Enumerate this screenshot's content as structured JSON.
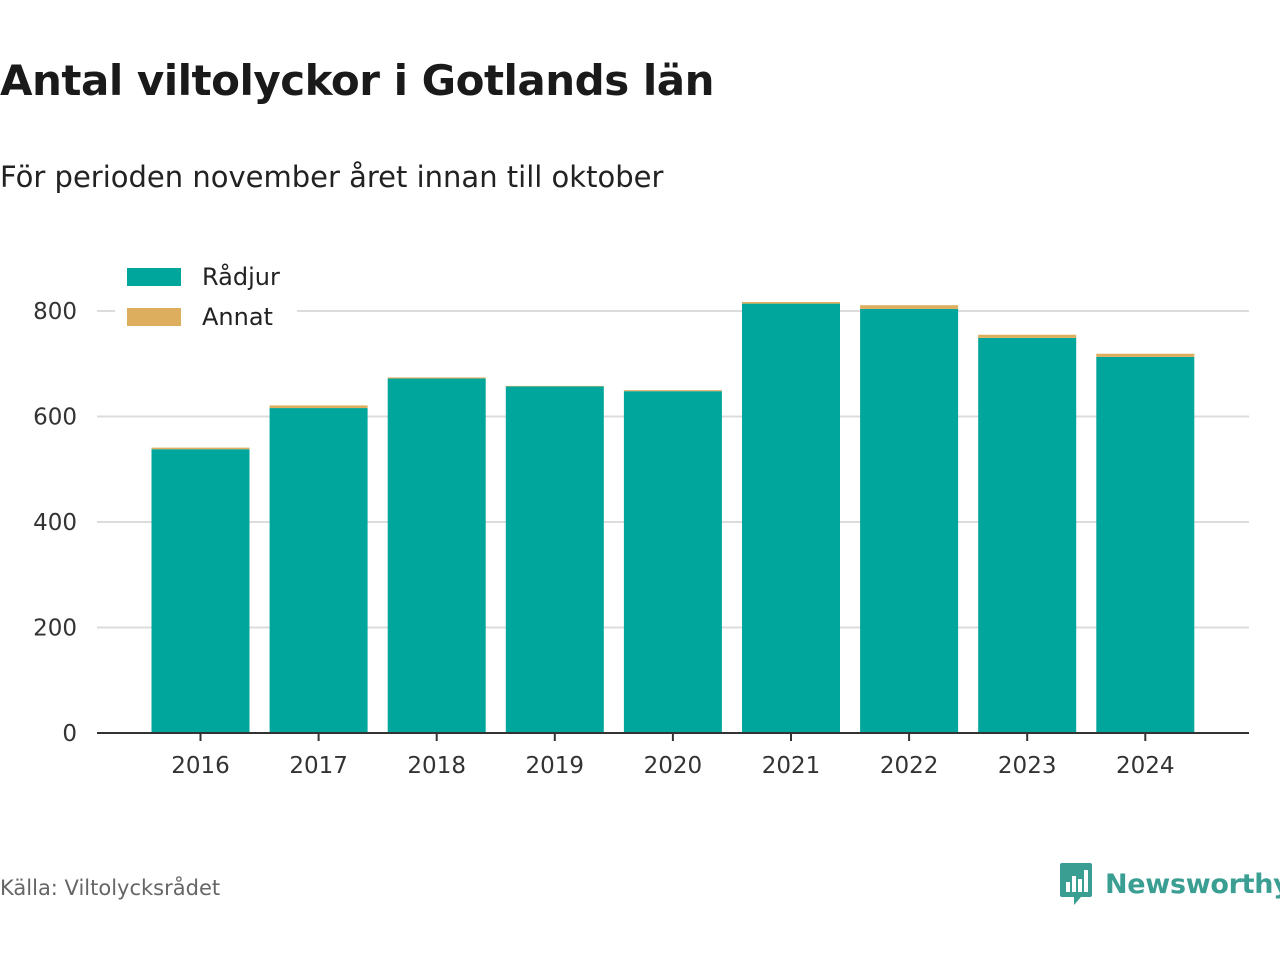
{
  "title": "Antal viltolyckor i Gotlands län",
  "subtitle": "För perioden november året innan till oktober",
  "source": "Källa: Viltolycksrådet",
  "brand": {
    "name": "Newsworthy",
    "icon": "newsworthy-logo-icon",
    "color": "#3a9e93"
  },
  "colors": {
    "radjur": "#00a59b",
    "annat": "#ddae5e",
    "grid": "#dcdcdc",
    "axis": "#333333"
  },
  "chart_data": {
    "type": "bar",
    "stacked": true,
    "categories": [
      "2016",
      "2017",
      "2018",
      "2019",
      "2020",
      "2021",
      "2022",
      "2023",
      "2024"
    ],
    "series": [
      {
        "name": "Rådjur",
        "color": "#00a59b",
        "values": [
          538,
          616,
          672,
          657,
          648,
          814,
          804,
          749,
          713
        ]
      },
      {
        "name": "Annat",
        "color": "#ddae5e",
        "values": [
          3,
          5,
          2,
          1,
          2,
          3,
          7,
          6,
          6
        ]
      }
    ],
    "ylim": [
      0,
      900
    ],
    "yticks": [
      0,
      200,
      400,
      600,
      800
    ],
    "grid": true,
    "legend": "top-left",
    "xlabel": "",
    "ylabel": ""
  }
}
